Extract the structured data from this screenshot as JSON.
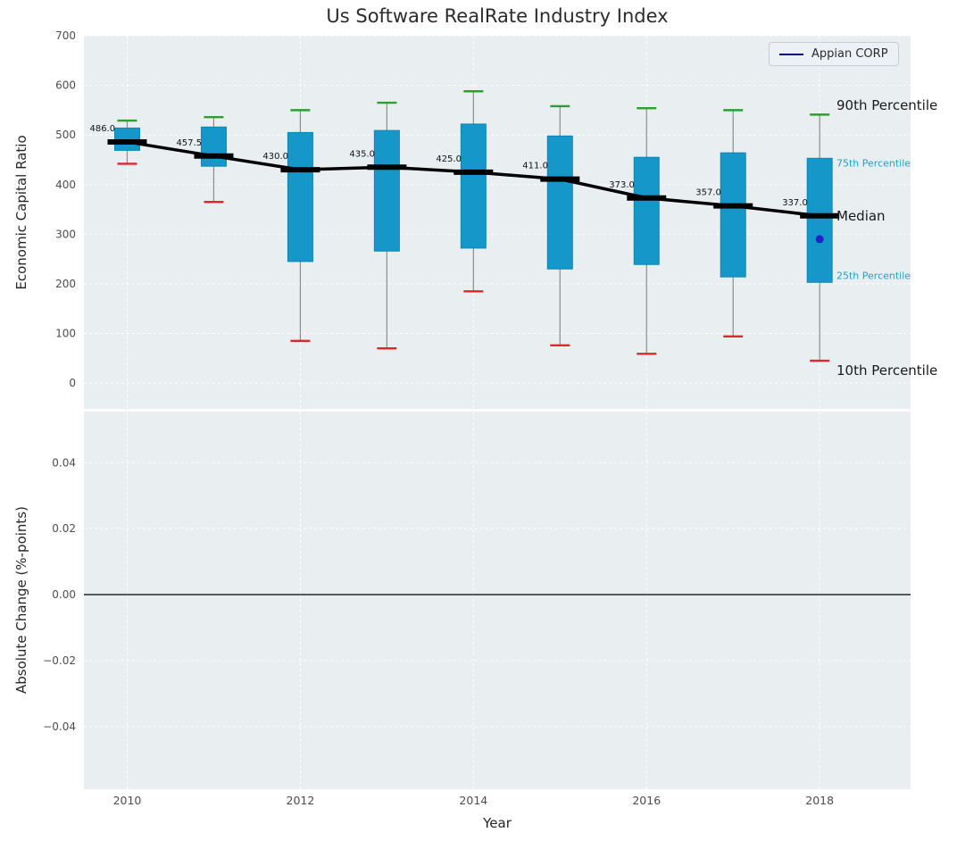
{
  "chart_data": {
    "type": "boxplot",
    "title": "Us Software RealRate Industry Index",
    "xlabel": "Year",
    "xlim": [
      2009.5,
      2019.05
    ],
    "xticks": [
      {
        "v": 2010,
        "label": "2010"
      },
      {
        "v": 2012,
        "label": "2012"
      },
      {
        "v": 2014,
        "label": "2014"
      },
      {
        "v": 2016,
        "label": "2016"
      },
      {
        "v": 2018,
        "label": "2018"
      }
    ],
    "legend": {
      "label": "Appian CORP",
      "color": "#00008b"
    },
    "colors": {
      "panel_bg": "#e9eef1",
      "grid": "#ffffff",
      "box_fill": "#1697c9",
      "box_edge": "#0f85b5",
      "cap_high": "#2ca02c",
      "cap_low": "#e02626",
      "whisker": "#8c8c8c",
      "median": "#000000",
      "appian_point": "#2222cc",
      "tick_label": "#4d4d4d",
      "value_label": "#111111",
      "percentile_accent": "#18a5c9"
    },
    "top_panel": {
      "ylabel": "Economic Capital Ratio",
      "ylim": [
        -52,
        700
      ],
      "yticks": [
        {
          "v": 0,
          "label": "0"
        },
        {
          "v": 100,
          "label": "100"
        },
        {
          "v": 200,
          "label": "200"
        },
        {
          "v": 300,
          "label": "300"
        },
        {
          "v": 400,
          "label": "400"
        },
        {
          "v": 500,
          "label": "500"
        },
        {
          "v": 600,
          "label": "600"
        },
        {
          "v": 700,
          "label": "700"
        }
      ],
      "boxes": [
        {
          "year": 2010,
          "whisker_low": 442,
          "q1": 469,
          "median": 486.0,
          "q3": 514,
          "whisker_high": 529,
          "label": "486.0"
        },
        {
          "year": 2011,
          "whisker_low": 365,
          "q1": 437,
          "median": 457.5,
          "q3": 516,
          "whisker_high": 536,
          "label": "457.5"
        },
        {
          "year": 2012,
          "whisker_low": 85,
          "q1": 245,
          "median": 430.0,
          "q3": 505,
          "whisker_high": 550,
          "label": "430.0"
        },
        {
          "year": 2013,
          "whisker_low": 70,
          "q1": 266,
          "median": 435.0,
          "q3": 509,
          "whisker_high": 565,
          "label": "435.0"
        },
        {
          "year": 2014,
          "whisker_low": 185,
          "q1": 272,
          "median": 425.0,
          "q3": 522,
          "whisker_high": 588,
          "label": "425.0"
        },
        {
          "year": 2015,
          "whisker_low": 76,
          "q1": 230,
          "median": 411.0,
          "q3": 498,
          "whisker_high": 558,
          "label": "411.0"
        },
        {
          "year": 2016,
          "whisker_low": 59,
          "q1": 239,
          "median": 373.0,
          "q3": 455,
          "whisker_high": 554,
          "label": "373.0"
        },
        {
          "year": 2017,
          "whisker_low": 94,
          "q1": 214,
          "median": 357.0,
          "q3": 464,
          "whisker_high": 550,
          "label": "357.0"
        },
        {
          "year": 2018,
          "whisker_low": 45,
          "q1": 203,
          "median": 337.0,
          "q3": 453,
          "whisker_high": 541,
          "label": "337.0"
        }
      ],
      "appian_point": {
        "year": 2018,
        "value": 290
      },
      "annotations": [
        {
          "id": "p90",
          "label": "90th Percentile",
          "value": 560,
          "color": "#1a1a1a",
          "size": 15
        },
        {
          "id": "p75",
          "label": "75th Percentile",
          "value": 443,
          "color": "#18a5c9",
          "size": 11
        },
        {
          "id": "median",
          "label": "Median",
          "value": 337,
          "color": "#1a1a1a",
          "size": 15
        },
        {
          "id": "p25",
          "label": "25th Percentile",
          "value": 216,
          "color": "#18a5c9",
          "size": 11
        },
        {
          "id": "p10",
          "label": "10th Percentile",
          "value": 25,
          "color": "#1a1a1a",
          "size": 15
        }
      ]
    },
    "bottom_panel": {
      "ylabel": "Absolute Change (%-points)",
      "ylim": [
        -0.059,
        0.0555
      ],
      "yticks": [
        {
          "v": 0.04,
          "label": "0.04"
        },
        {
          "v": 0.02,
          "label": "0.02"
        },
        {
          "v": 0.0,
          "label": "0.00"
        },
        {
          "v": -0.02,
          "label": "−0.02"
        },
        {
          "v": -0.04,
          "label": "−0.04"
        }
      ],
      "zero_line": 0.0
    }
  }
}
